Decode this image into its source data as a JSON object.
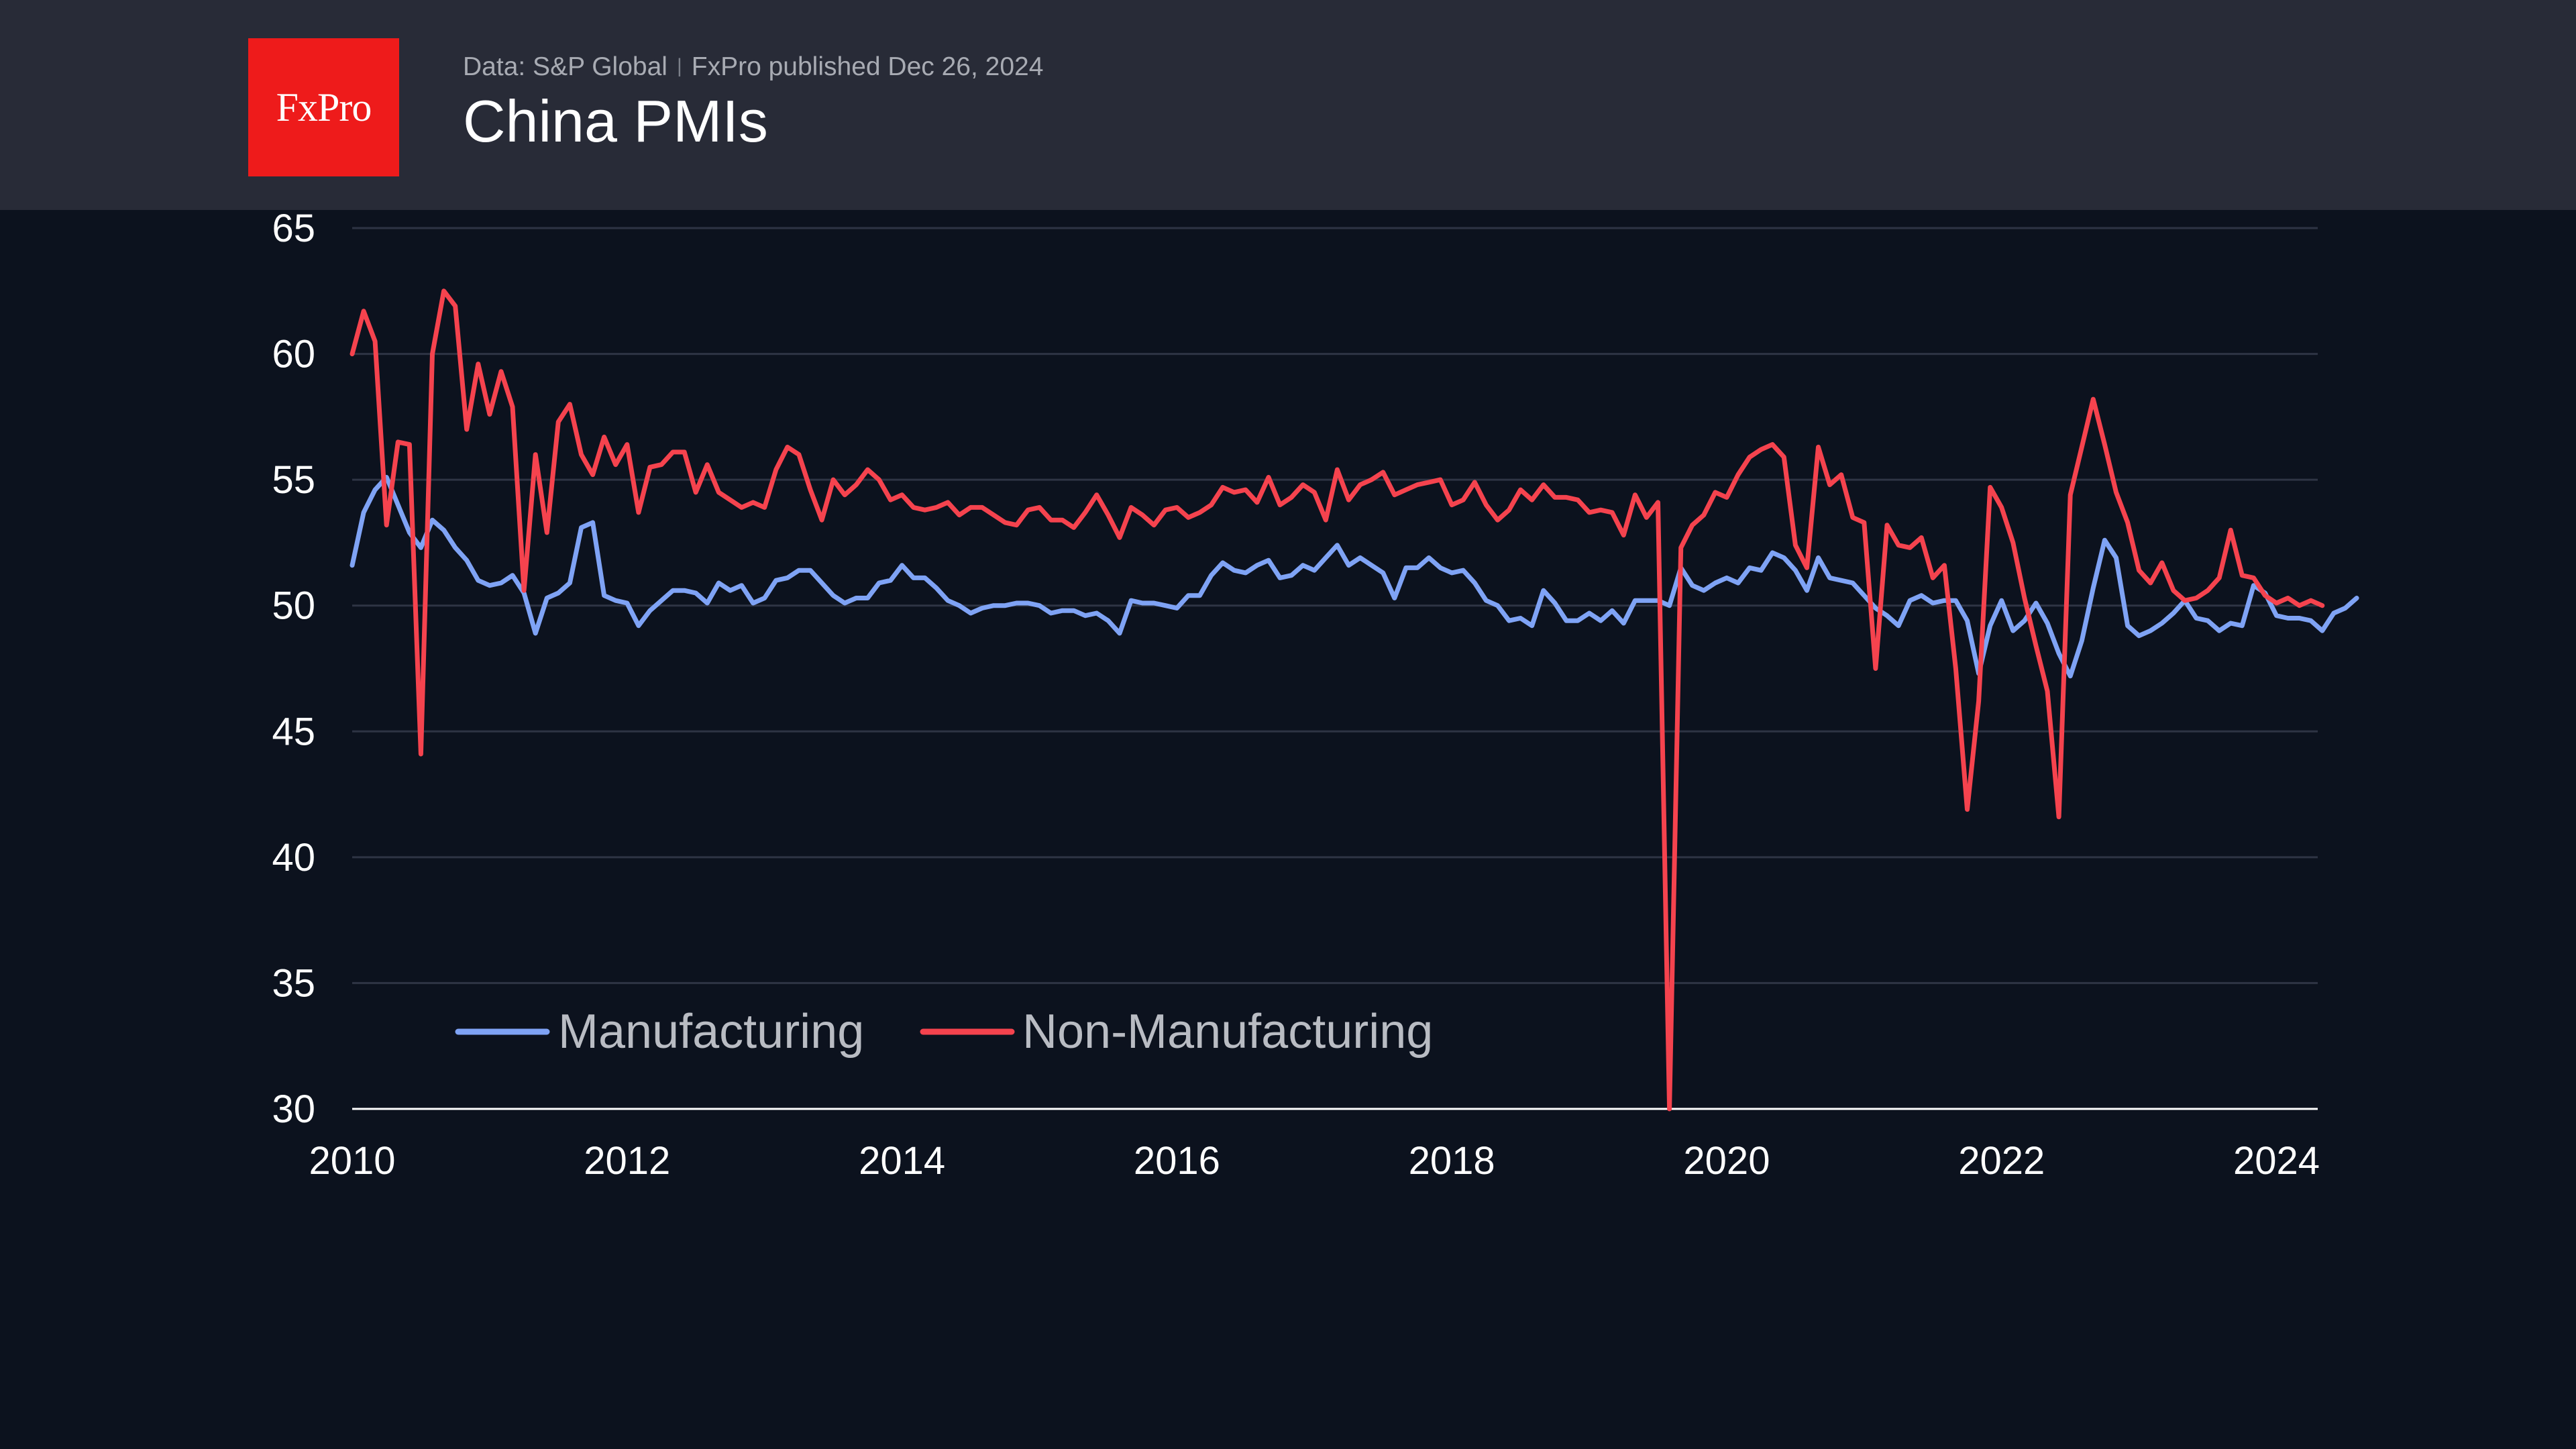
{
  "header": {
    "logo": "FxPro",
    "source": "Data: S&P Global",
    "published": "FxPro published Dec 26, 2024",
    "title": "China PMIs"
  },
  "colors": {
    "manufacturing": "#7fa3f5",
    "non_manufacturing": "#f5434e",
    "grid": "#2e3444",
    "axis": "#ffffff"
  },
  "chart_data": {
    "type": "line",
    "title": "China PMIs",
    "xlabel": "",
    "ylabel": "",
    "ylim": [
      30,
      65
    ],
    "xlim": [
      2010,
      2024.3
    ],
    "y_ticks": [
      "30",
      "35",
      "40",
      "45",
      "50",
      "55",
      "60",
      "65"
    ],
    "x_ticks": [
      "2010",
      "2012",
      "2014",
      "2016",
      "2018",
      "2020",
      "2022",
      "2024"
    ],
    "grid": true,
    "legend_position": "bottom-left",
    "x_start": "2010-01",
    "series": [
      {
        "name": "Manufacturing",
        "color": "#7fa3f5",
        "values": [
          51.6,
          53.7,
          54.6,
          55.1,
          54.0,
          52.9,
          52.3,
          53.4,
          53.0,
          52.3,
          51.8,
          51.0,
          50.8,
          50.9,
          51.2,
          50.5,
          48.9,
          50.3,
          50.5,
          50.9,
          53.1,
          53.3,
          50.4,
          50.2,
          50.1,
          49.2,
          49.8,
          50.2,
          50.6,
          50.6,
          50.5,
          50.1,
          50.9,
          50.6,
          50.8,
          50.1,
          50.3,
          51.0,
          51.1,
          51.4,
          51.4,
          50.9,
          50.4,
          50.1,
          50.3,
          50.3,
          50.9,
          51.0,
          51.6,
          51.1,
          51.1,
          50.7,
          50.2,
          50.0,
          49.7,
          49.9,
          50.0,
          50.0,
          50.1,
          50.1,
          50.0,
          49.7,
          49.8,
          49.8,
          49.6,
          49.7,
          49.4,
          48.9,
          50.2,
          50.1,
          50.1,
          50.0,
          49.9,
          50.4,
          50.4,
          51.2,
          51.7,
          51.4,
          51.3,
          51.6,
          51.8,
          51.1,
          51.2,
          51.6,
          51.4,
          51.9,
          52.4,
          51.6,
          51.9,
          51.6,
          51.3,
          50.3,
          51.5,
          51.5,
          51.9,
          51.5,
          51.3,
          51.4,
          50.9,
          50.2,
          50.0,
          49.4,
          49.5,
          49.2,
          50.6,
          50.1,
          49.4,
          49.4,
          49.7,
          49.4,
          49.8,
          49.3,
          50.2,
          50.2,
          50.2,
          50.0,
          51.5,
          50.8,
          50.6,
          50.9,
          51.1,
          50.9,
          51.5,
          51.4,
          52.1,
          51.9,
          51.4,
          50.6,
          51.9,
          51.1,
          51.0,
          50.9,
          50.4,
          49.9,
          49.6,
          49.2,
          50.2,
          50.4,
          50.1,
          50.2,
          50.2,
          49.4,
          47.3,
          49.2,
          50.2,
          49.0,
          49.4,
          50.1,
          49.3,
          48.1,
          47.2,
          48.6,
          50.7,
          52.6,
          51.9,
          49.2,
          48.8,
          49.0,
          49.3,
          49.7,
          50.2,
          49.5,
          49.4,
          49.0,
          49.3,
          49.2,
          50.8,
          50.5,
          49.6,
          49.5,
          49.5,
          49.4,
          49.0,
          49.7,
          49.9,
          50.3
        ]
      },
      {
        "name": "Non-Manufacturing",
        "color": "#f5434e",
        "values": [
          60.0,
          61.7,
          60.5,
          53.2,
          56.5,
          56.4,
          44.1,
          60.0,
          62.5,
          61.9,
          57.0,
          59.6,
          57.6,
          59.3,
          57.9,
          50.6,
          56.0,
          52.9,
          57.3,
          58.0,
          56.0,
          55.2,
          56.7,
          55.6,
          56.4,
          53.7,
          55.5,
          55.6,
          56.1,
          56.1,
          54.5,
          55.6,
          54.5,
          54.2,
          53.9,
          54.1,
          53.9,
          55.4,
          56.3,
          56.0,
          54.6,
          53.4,
          55.0,
          54.4,
          54.8,
          55.4,
          55.0,
          54.2,
          54.4,
          53.9,
          53.8,
          53.9,
          54.1,
          53.6,
          53.9,
          53.9,
          53.6,
          53.3,
          53.2,
          53.8,
          53.9,
          53.4,
          53.4,
          53.1,
          53.7,
          54.4,
          53.6,
          52.7,
          53.9,
          53.6,
          53.2,
          53.8,
          53.9,
          53.5,
          53.7,
          54.0,
          54.7,
          54.5,
          54.6,
          54.1,
          55.1,
          54.0,
          54.3,
          54.8,
          54.5,
          53.4,
          55.4,
          54.2,
          54.8,
          55.0,
          55.3,
          54.4,
          54.6,
          54.8,
          54.9,
          55.0,
          54.0,
          54.2,
          54.9,
          54.0,
          53.4,
          53.8,
          54.6,
          54.2,
          54.8,
          54.3,
          54.3,
          54.2,
          53.7,
          53.8,
          53.7,
          52.8,
          54.4,
          53.5,
          54.1,
          30.0,
          52.3,
          53.2,
          53.6,
          54.5,
          54.3,
          55.2,
          55.9,
          56.2,
          56.4,
          55.9,
          52.4,
          51.5,
          56.3,
          54.8,
          55.2,
          53.5,
          53.3,
          47.5,
          53.2,
          52.4,
          52.3,
          52.7,
          51.1,
          51.6,
          47.5,
          41.9,
          46.2,
          54.7,
          53.9,
          52.5,
          50.3,
          48.4,
          46.6,
          41.6,
          54.4,
          56.3,
          58.2,
          56.4,
          54.5,
          53.3,
          51.4,
          50.9,
          51.7,
          50.6,
          50.2,
          50.3,
          50.6,
          51.1,
          53.0,
          51.2,
          51.1,
          50.4,
          50.1,
          50.3,
          50.0,
          50.2,
          50.0
        ]
      }
    ]
  }
}
